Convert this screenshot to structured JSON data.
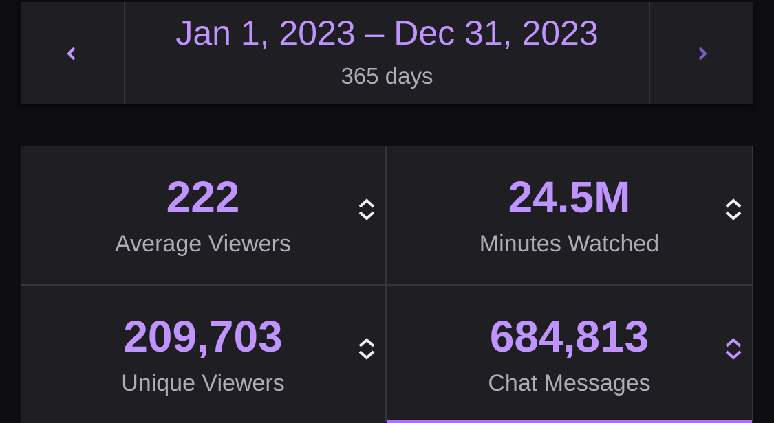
{
  "date_range": {
    "range": "Jan 1, 2023 – Dec 31, 2023",
    "duration": "365 days"
  },
  "stats": [
    {
      "value": "222",
      "label": "Average Viewers"
    },
    {
      "value": "24.5M",
      "label": "Minutes Watched"
    },
    {
      "value": "209,703",
      "label": "Unique Viewers"
    },
    {
      "value": "684,813",
      "label": "Chat Messages"
    }
  ]
}
